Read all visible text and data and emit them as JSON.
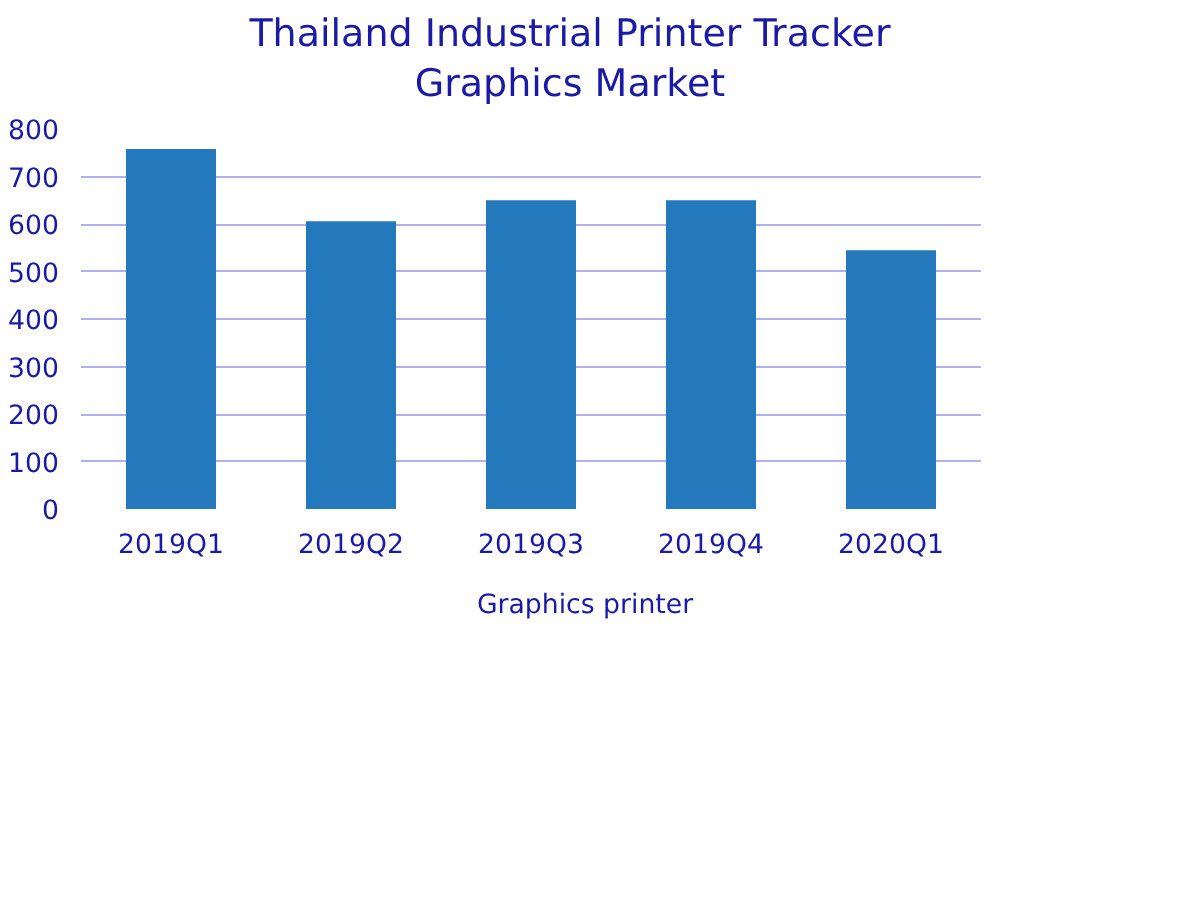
{
  "chart_data": {
    "type": "bar",
    "title": "Thailand Industrial Printer Tracker\nGraphics Market",
    "categories": [
      "2019Q1",
      "2019Q2",
      "2019Q3",
      "2019Q4",
      "2020Q1"
    ],
    "series": [
      {
        "name": "Graphics printer",
        "color": "#2479bd",
        "values": [
          758,
          606,
          650,
          650,
          545
        ]
      }
    ],
    "ylim": [
      0,
      800
    ],
    "yticks": [
      0,
      100,
      200,
      300,
      400,
      500,
      600,
      700,
      800
    ],
    "grid": "y",
    "legend": "bottom"
  }
}
